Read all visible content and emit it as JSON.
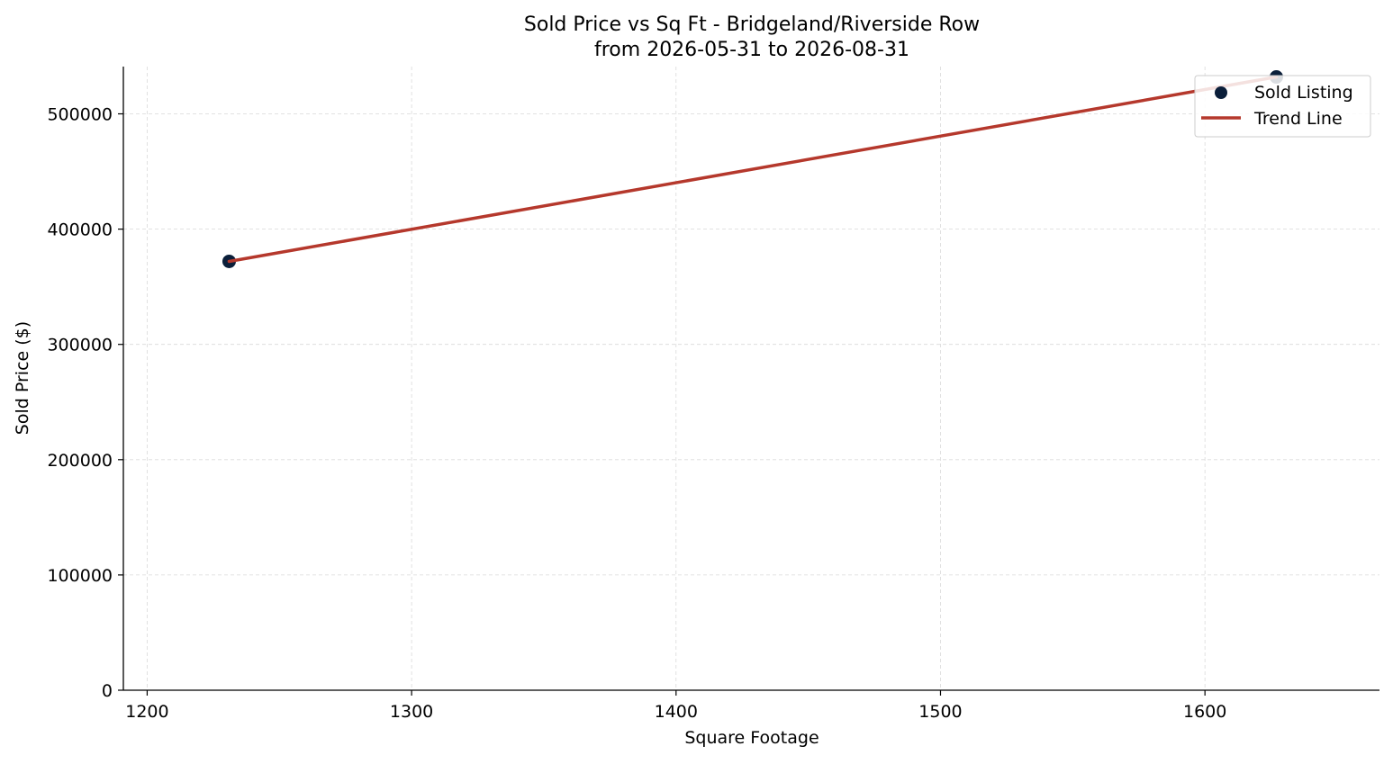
{
  "chart_data": {
    "type": "scatter",
    "title": "Sold Price vs Sq Ft - Bridgeland/Riverside Row",
    "subtitle": "from 2026-05-31 to 2026-08-31",
    "xlabel": "Square Footage",
    "ylabel": "Sold Price ($)",
    "xlim": [
      1191,
      1666
    ],
    "ylim": [
      0,
      541000
    ],
    "xticks": [
      1200,
      1300,
      1400,
      1500,
      1600
    ],
    "yticks": [
      0,
      100000,
      200000,
      300000,
      400000,
      500000
    ],
    "grid": true,
    "legend_position": "top-right",
    "series": [
      {
        "name": "Sold Listing",
        "kind": "scatter",
        "color": "#0b1f3a",
        "x": [
          1231,
          1627
        ],
        "y": [
          372000,
          532000
        ]
      },
      {
        "name": "Trend Line",
        "kind": "line",
        "color": "#b5382c",
        "x": [
          1231,
          1627
        ],
        "y": [
          372000,
          532000
        ]
      }
    ]
  }
}
